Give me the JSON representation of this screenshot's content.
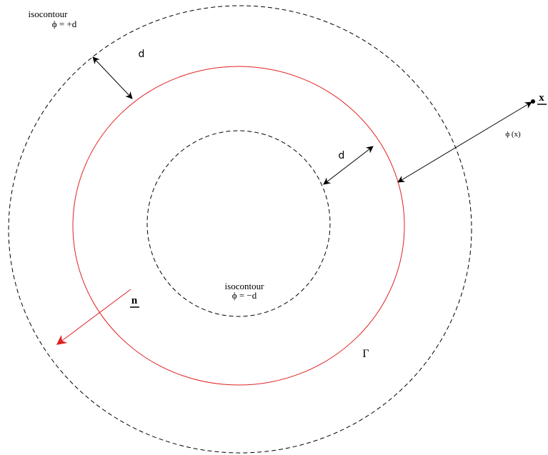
{
  "labels": {
    "outer_title": "isocontour",
    "outer_value": "ϕ = +d",
    "gap_outer": "d",
    "gap_inner": "d",
    "point": "x",
    "distance": "ϕ (x)",
    "inner_title": "isocontour",
    "inner_value": "ϕ = −d",
    "normal": "n",
    "interface": "Γ"
  }
}
